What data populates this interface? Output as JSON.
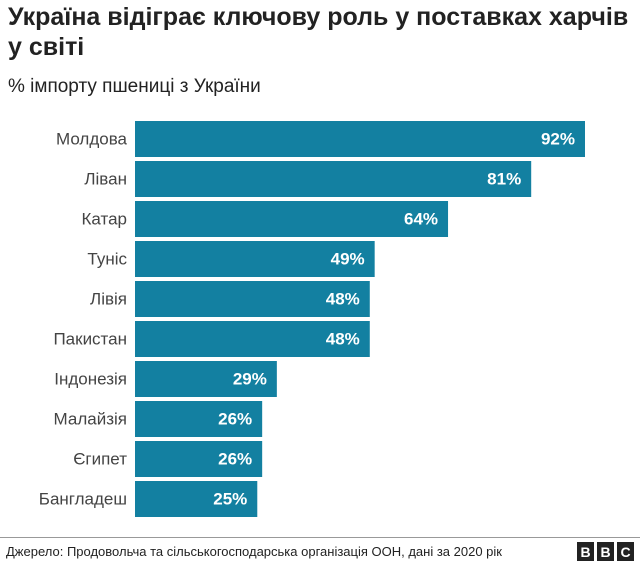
{
  "chart_data": {
    "type": "bar",
    "orientation": "horizontal",
    "title": "Україна відіграє ключову роль у поставках харчів у світі",
    "subtitle": "% імпорту пшениці з України",
    "categories": [
      "Молдова",
      "Ліван",
      "Катар",
      "Туніс",
      "Лівія",
      "Пакистан",
      "Індонезія",
      "Малайзія",
      "Єгипет",
      "Бангладеш"
    ],
    "values": [
      92,
      81,
      64,
      49,
      48,
      48,
      29,
      26,
      26,
      25
    ],
    "value_labels": [
      "92%",
      "81%",
      "64%",
      "49%",
      "48%",
      "48%",
      "29%",
      "26%",
      "26%",
      "25%"
    ],
    "color": "#1380a1",
    "source": "Джерело: Продовольча та сільськогосподарська організація ООН, дані за 2020 рік",
    "logo": [
      "B",
      "B",
      "C"
    ]
  }
}
